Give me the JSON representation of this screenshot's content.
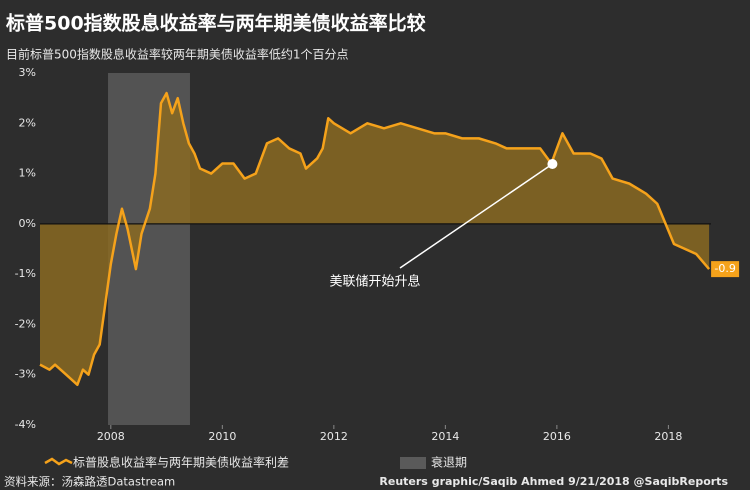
{
  "chart_data": {
    "type": "area",
    "title": "标普500指数股息收益率与两年期美债收益率比较",
    "subtitle": "目前标普500指数股息收益率较两年期美债收益率低约1个百分点",
    "series": [
      {
        "name": "标普股息收益率与两年期美债收益率利差",
        "color": "#f5a21b",
        "x": [
          2006.73,
          2006.9,
          2007.0,
          2007.2,
          2007.4,
          2007.5,
          2007.6,
          2007.7,
          2007.8,
          2007.9,
          2008.0,
          2008.1,
          2008.2,
          2008.3,
          2008.45,
          2008.55,
          2008.7,
          2008.8,
          2008.9,
          2009.0,
          2009.1,
          2009.2,
          2009.3,
          2009.4,
          2009.5,
          2009.6,
          2009.8,
          2010.0,
          2010.2,
          2010.4,
          2010.6,
          2010.8,
          2011.0,
          2011.2,
          2011.4,
          2011.5,
          2011.7,
          2011.8,
          2011.9,
          2012.0,
          2012.3,
          2012.6,
          2012.9,
          2013.2,
          2013.5,
          2013.8,
          2014.0,
          2014.3,
          2014.6,
          2014.9,
          2015.1,
          2015.4,
          2015.7,
          2015.9,
          2016.1,
          2016.3,
          2016.6,
          2016.8,
          2017.0,
          2017.3,
          2017.6,
          2017.8,
          2017.95,
          2018.1,
          2018.3,
          2018.5,
          2018.73
        ],
        "values": [
          -2.8,
          -2.9,
          -2.8,
          -3.0,
          -3.2,
          -2.9,
          -3.0,
          -2.6,
          -2.4,
          -1.6,
          -0.8,
          -0.2,
          0.3,
          -0.1,
          -0.9,
          -0.2,
          0.3,
          1.0,
          2.4,
          2.6,
          2.2,
          2.5,
          2.0,
          1.6,
          1.4,
          1.1,
          1.0,
          1.2,
          1.2,
          0.9,
          1.0,
          1.6,
          1.7,
          1.5,
          1.4,
          1.1,
          1.3,
          1.5,
          2.1,
          2.0,
          1.8,
          2.0,
          1.9,
          2.0,
          1.9,
          1.8,
          1.8,
          1.7,
          1.7,
          1.6,
          1.5,
          1.5,
          1.5,
          1.2,
          1.8,
          1.4,
          1.4,
          1.3,
          0.9,
          0.8,
          0.6,
          0.4,
          0.0,
          -0.4,
          -0.5,
          -0.6,
          -0.9
        ]
      }
    ],
    "recession": {
      "name": "衰退期",
      "color": "#5a5a5a",
      "x": [
        2007.95,
        2009.42
      ]
    },
    "xlim": [
      2006.73,
      2018.8
    ],
    "xticks": [
      2008,
      2010,
      2012,
      2014,
      2016,
      2018
    ],
    "ylim": [
      -4,
      3
    ],
    "yticks": [
      {
        "value": -4,
        "label": "-4%"
      },
      {
        "value": -3,
        "label": "-3%"
      },
      {
        "value": -2,
        "label": "-2%"
      },
      {
        "value": -1,
        "label": "-1%"
      },
      {
        "value": 0,
        "label": "0%"
      },
      {
        "value": 1,
        "label": "1%"
      },
      {
        "value": 2,
        "label": "2%"
      },
      {
        "value": 3,
        "label": "3%"
      }
    ],
    "annotation": {
      "text": "美联储开始升息",
      "x": 2015.92,
      "y": 1.19
    },
    "source": "资料来源：汤森路透Datastream",
    "credit": "Reuters graphic/Saqib Ahmed 9/21/2018 @SaqibReports"
  }
}
